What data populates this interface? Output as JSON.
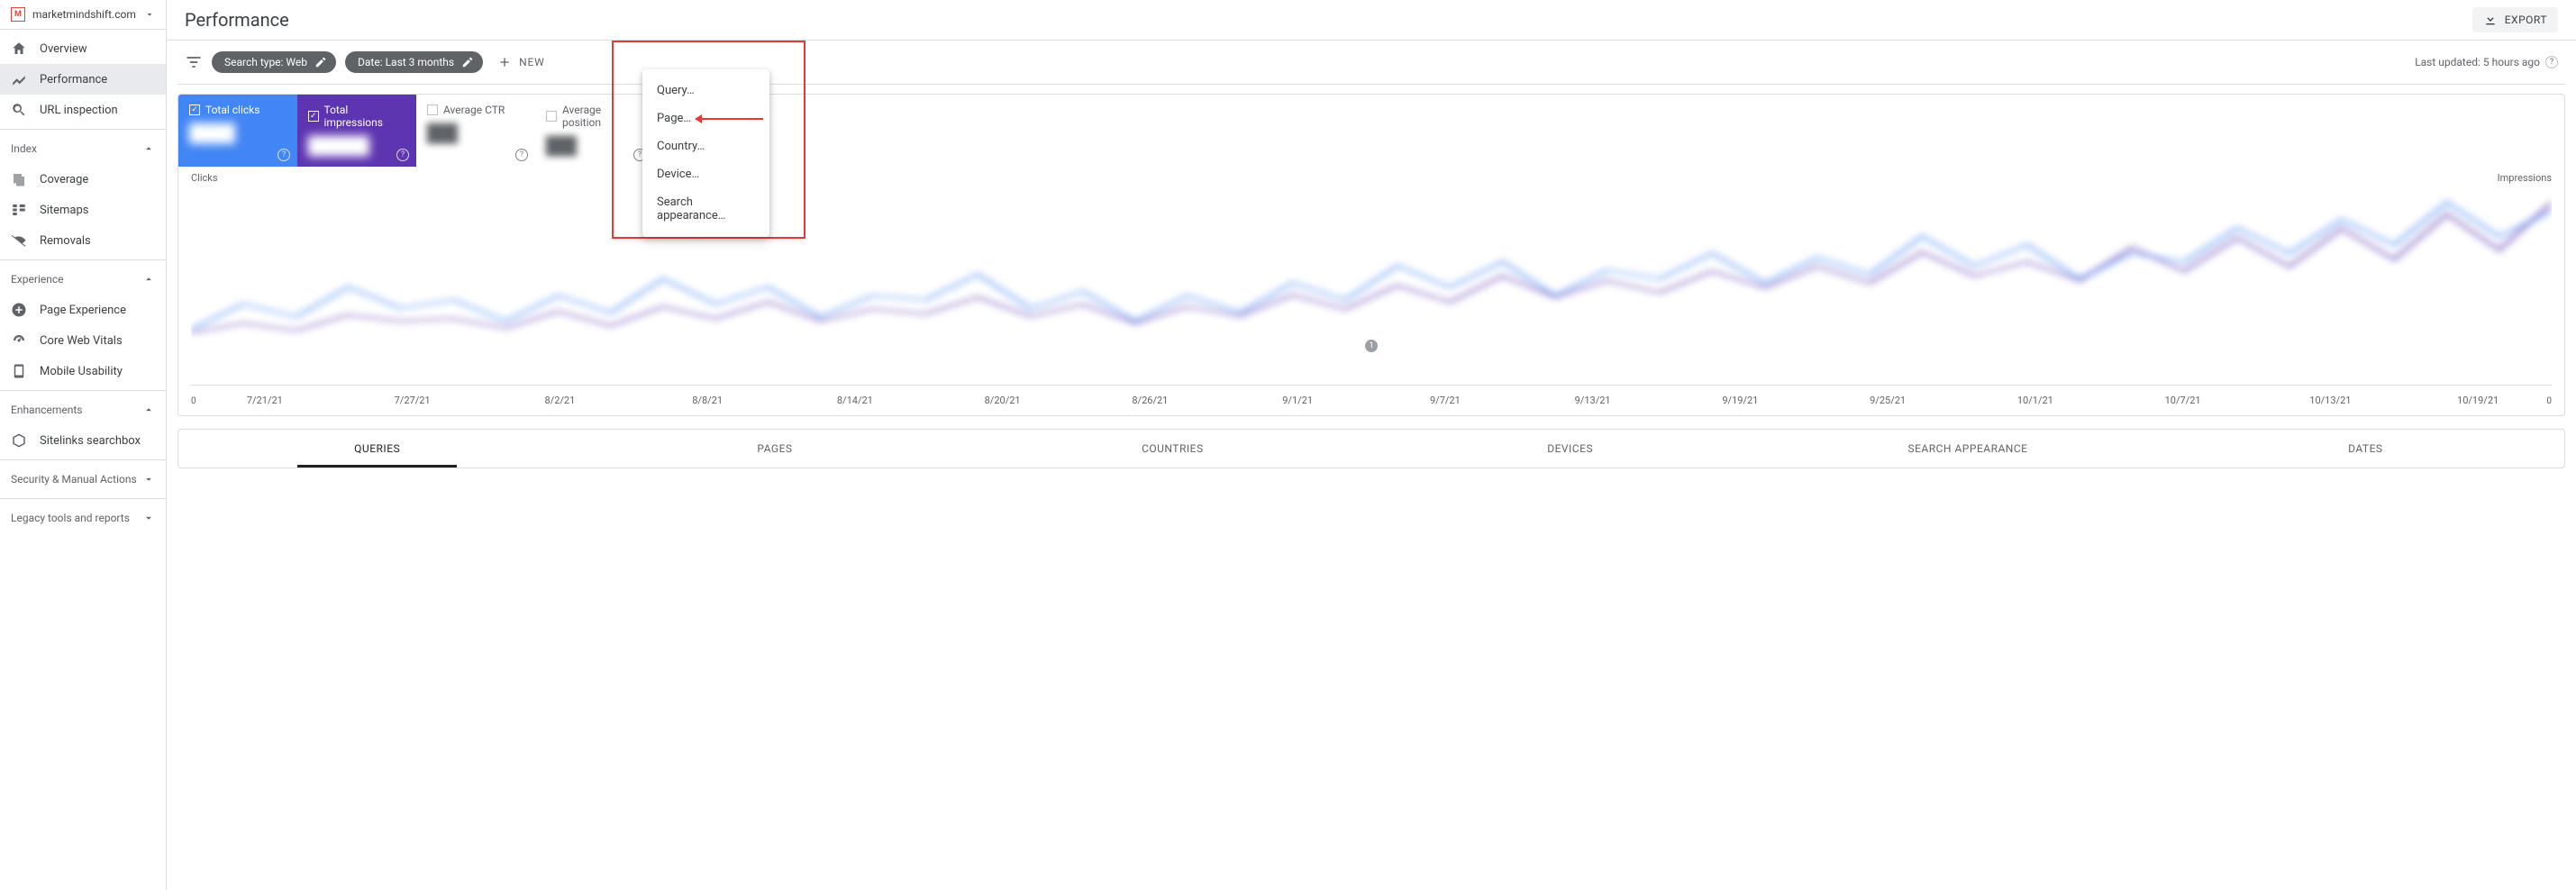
{
  "property": {
    "name": "marketmindshift.com"
  },
  "sidebar": {
    "top": [
      {
        "label": "Overview"
      },
      {
        "label": "Performance"
      },
      {
        "label": "URL inspection"
      }
    ],
    "index_header": "Index",
    "index": [
      {
        "label": "Coverage"
      },
      {
        "label": "Sitemaps"
      },
      {
        "label": "Removals"
      }
    ],
    "experience_header": "Experience",
    "experience": [
      {
        "label": "Page Experience"
      },
      {
        "label": "Core Web Vitals"
      },
      {
        "label": "Mobile Usability"
      }
    ],
    "enhancements_header": "Enhancements",
    "enhancements": [
      {
        "label": "Sitelinks searchbox"
      }
    ],
    "security_header": "Security & Manual Actions",
    "legacy_header": "Legacy tools and reports"
  },
  "header": {
    "title": "Performance",
    "export": "EXPORT"
  },
  "filters": {
    "search_type": "Search type: Web",
    "date": "Date: Last 3 months",
    "new": "NEW",
    "last_updated": "Last updated: 5 hours ago"
  },
  "dropdown": {
    "query": "Query…",
    "page": "Page…",
    "country": "Country…",
    "device": "Device…",
    "appearance": "Search appearance…"
  },
  "metrics": {
    "clicks": {
      "title": "Total clicks",
      "value": "▇▇▇",
      "color": "#4285f4"
    },
    "impressions": {
      "title": "Total impressions",
      "value": "▇▇▇▇",
      "color": "#5e35b1"
    },
    "ctr": {
      "title": "Average CTR",
      "value": "▇▇",
      "color": "#00897b"
    },
    "position": {
      "title": "Average position",
      "value": "▇▇",
      "color": "#e8710a"
    }
  },
  "chart": {
    "y_left_label": "Clicks",
    "y_right_label": "Impressions",
    "zero": "0",
    "badge": "1",
    "x_labels": [
      "7/21/21",
      "7/27/21",
      "8/2/21",
      "8/8/21",
      "8/14/21",
      "8/20/21",
      "8/26/21",
      "9/1/21",
      "9/7/21",
      "9/13/21",
      "9/19/21",
      "9/25/21",
      "10/1/21",
      "10/7/21",
      "10/13/21",
      "10/19/21"
    ],
    "clicks_series_color": "#4285f4",
    "impressions_series_color": "#5e35b1",
    "clicks_points": [
      12,
      18,
      15,
      22,
      17,
      19,
      14,
      20,
      16,
      24,
      18,
      22,
      15,
      20,
      19,
      25,
      17,
      21,
      14,
      20,
      16,
      23,
      19,
      27,
      22,
      28,
      20,
      26,
      24,
      30,
      23,
      29,
      25,
      34,
      27,
      32,
      24,
      30,
      28,
      36,
      30,
      38,
      32,
      42,
      34,
      40
    ],
    "impressions_points": [
      40,
      48,
      42,
      55,
      50,
      52,
      44,
      58,
      46,
      62,
      52,
      66,
      50,
      60,
      56,
      70,
      54,
      64,
      48,
      62,
      54,
      72,
      60,
      80,
      66,
      88,
      70,
      84,
      74,
      92,
      78,
      96,
      82,
      108,
      88,
      100,
      84,
      112,
      92,
      120,
      96,
      128,
      102,
      140,
      110,
      150
    ]
  },
  "tabs": [
    "QUERIES",
    "PAGES",
    "COUNTRIES",
    "DEVICES",
    "SEARCH APPEARANCE",
    "DATES"
  ]
}
